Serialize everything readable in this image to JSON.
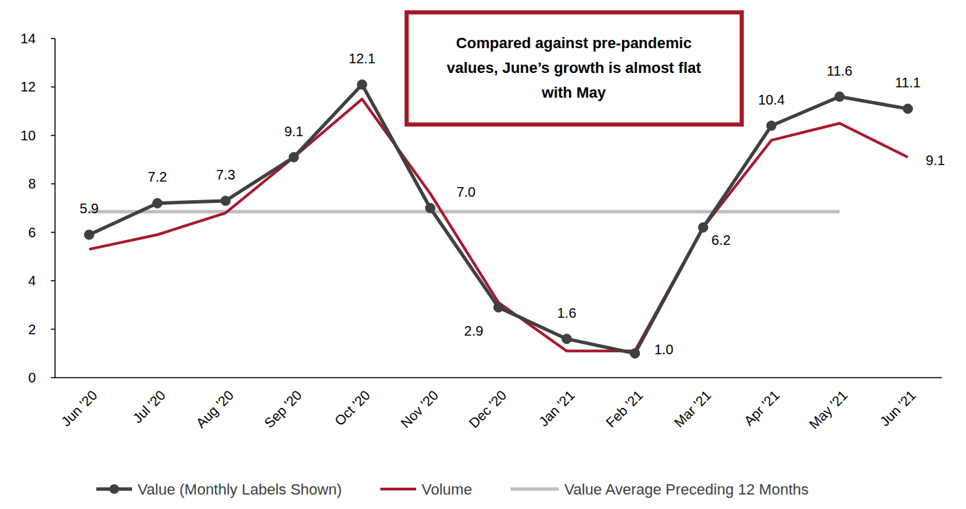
{
  "chart_data": {
    "type": "line",
    "annotation": [
      "Compared against pre-pandemic",
      "values, June’s growth is almost flat",
      "with May"
    ],
    "categories": [
      "Jun '20",
      "Jul '20",
      "Aug '20",
      "Sep '20",
      "Oct '20",
      "Nov '20",
      "Dec '20",
      "Jan '21",
      "Feb '21",
      "Mar '21",
      "Apr '21",
      "May '21",
      "Jun '21"
    ],
    "series": [
      {
        "name": "Value (Monthly Labels Shown)",
        "color": "#404040",
        "marker": "circle",
        "data_labels": true,
        "values": [
          5.9,
          7.2,
          7.3,
          9.1,
          12.1,
          7.0,
          2.9,
          1.6,
          1.0,
          6.2,
          10.4,
          11.6,
          11.1
        ],
        "value_labels": [
          "5.9",
          "7.2",
          "7.3",
          "9.1",
          "12.1",
          "7.0",
          "2.9",
          "1.6",
          "1.0",
          "6.2",
          "10.4",
          "11.6",
          "11.1"
        ]
      },
      {
        "name": "Volume",
        "color": "#a6192e",
        "marker": "none",
        "data_labels": true,
        "values": [
          5.3,
          5.9,
          6.8,
          9.1,
          11.5,
          7.6,
          3.1,
          1.1,
          1.1,
          6.2,
          9.8,
          10.5,
          9.1
        ],
        "value_labels": [
          null,
          null,
          null,
          null,
          null,
          null,
          null,
          null,
          null,
          null,
          null,
          null,
          "9.1"
        ]
      },
      {
        "name": "Value Average Preceding 12 Months",
        "color": "#bfbfbf",
        "marker": "none",
        "values": [
          6.85,
          6.85,
          6.85,
          6.85,
          6.85,
          6.85,
          6.85,
          6.85,
          6.85,
          6.85,
          6.85,
          6.85,
          null
        ]
      }
    ],
    "ylim": [
      0,
      14
    ],
    "yticks": [
      0,
      2,
      4,
      6,
      8,
      10,
      12,
      14
    ],
    "grid": false,
    "legend": "bottom"
  }
}
